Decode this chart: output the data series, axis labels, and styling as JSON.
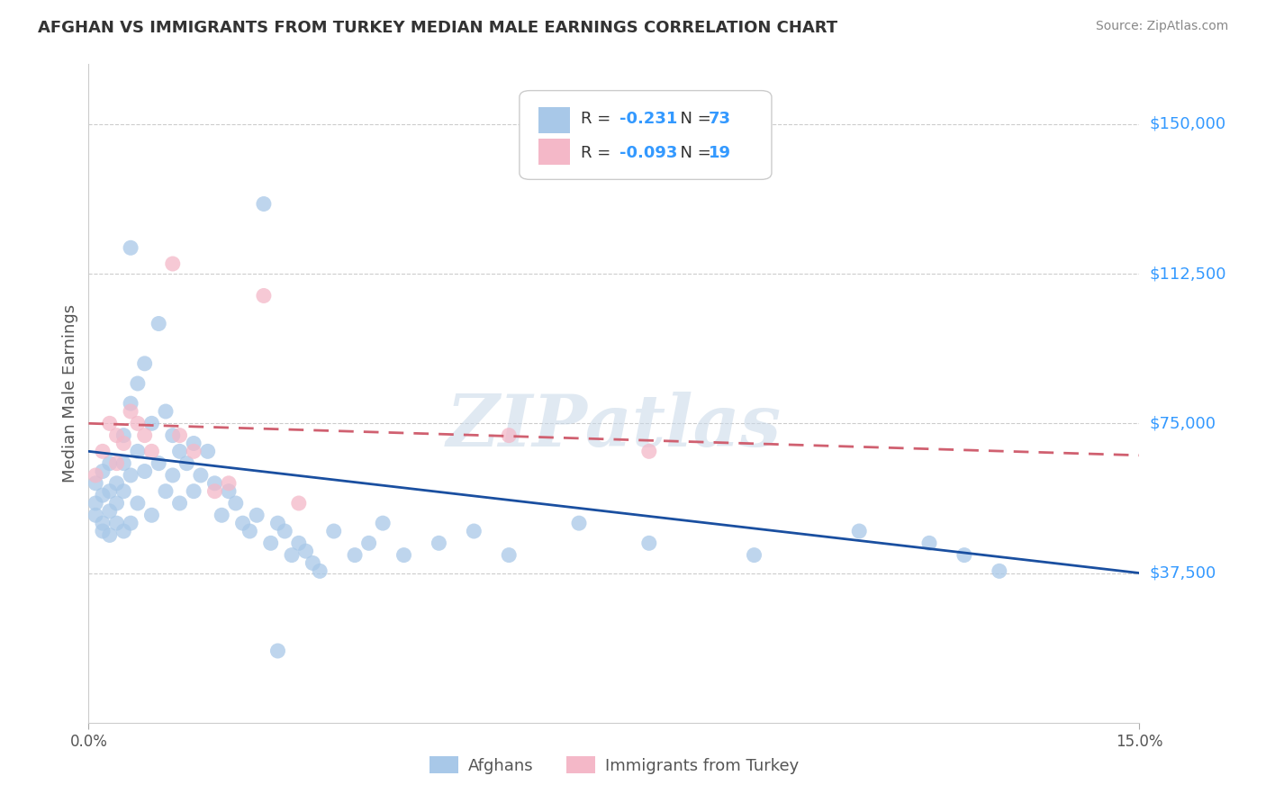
{
  "title": "AFGHAN VS IMMIGRANTS FROM TURKEY MEDIAN MALE EARNINGS CORRELATION CHART",
  "source": "Source: ZipAtlas.com",
  "ylabel": "Median Male Earnings",
  "xlim": [
    0.0,
    0.15
  ],
  "ylim": [
    0,
    165000
  ],
  "ytick_vals": [
    37500,
    75000,
    112500,
    150000
  ],
  "ytick_labels": [
    "$37,500",
    "$75,000",
    "$112,500",
    "$150,000"
  ],
  "background_color": "#ffffff",
  "watermark": "ZIPatlas",
  "blue_color": "#a8c8e8",
  "pink_color": "#f4b8c8",
  "line_blue": "#1a4fa0",
  "line_pink": "#d06070",
  "blue_line_y0": 68000,
  "blue_line_y1": 37500,
  "pink_line_y0": 75000,
  "pink_line_y1": 67000,
  "grid_color": "#cccccc",
  "tick_color": "#555555",
  "label_color": "#3399ff",
  "title_color": "#333333",
  "source_color": "#888888",
  "afghans_x": [
    0.001,
    0.001,
    0.001,
    0.002,
    0.002,
    0.002,
    0.002,
    0.003,
    0.003,
    0.003,
    0.003,
    0.004,
    0.004,
    0.004,
    0.005,
    0.005,
    0.005,
    0.005,
    0.006,
    0.006,
    0.006,
    0.006,
    0.007,
    0.007,
    0.007,
    0.008,
    0.008,
    0.009,
    0.009,
    0.01,
    0.01,
    0.011,
    0.011,
    0.012,
    0.012,
    0.013,
    0.013,
    0.014,
    0.015,
    0.015,
    0.016,
    0.017,
    0.018,
    0.019,
    0.02,
    0.021,
    0.022,
    0.023,
    0.024,
    0.025,
    0.026,
    0.027,
    0.028,
    0.029,
    0.03,
    0.031,
    0.032,
    0.033,
    0.035,
    0.038,
    0.04,
    0.042,
    0.045,
    0.05,
    0.055,
    0.06,
    0.07,
    0.08,
    0.095,
    0.11,
    0.12,
    0.125,
    0.13
  ],
  "afghans_y": [
    55000,
    60000,
    52000,
    63000,
    57000,
    50000,
    48000,
    65000,
    58000,
    53000,
    47000,
    60000,
    55000,
    50000,
    72000,
    65000,
    58000,
    48000,
    119000,
    80000,
    62000,
    50000,
    85000,
    68000,
    55000,
    90000,
    63000,
    75000,
    52000,
    100000,
    65000,
    78000,
    58000,
    72000,
    62000,
    68000,
    55000,
    65000,
    70000,
    58000,
    62000,
    68000,
    60000,
    52000,
    58000,
    55000,
    50000,
    48000,
    52000,
    130000,
    45000,
    50000,
    48000,
    42000,
    45000,
    43000,
    40000,
    38000,
    48000,
    42000,
    45000,
    50000,
    42000,
    45000,
    48000,
    42000,
    50000,
    45000,
    42000,
    48000,
    45000,
    42000,
    38000
  ],
  "turkey_x": [
    0.001,
    0.002,
    0.003,
    0.004,
    0.004,
    0.005,
    0.006,
    0.007,
    0.008,
    0.009,
    0.012,
    0.013,
    0.015,
    0.018,
    0.02,
    0.025,
    0.03,
    0.06,
    0.08
  ],
  "turkey_y": [
    62000,
    68000,
    75000,
    72000,
    65000,
    70000,
    78000,
    75000,
    72000,
    68000,
    115000,
    72000,
    68000,
    58000,
    60000,
    107000,
    55000,
    72000,
    68000
  ],
  "afghans_low_x": [
    0.027
  ],
  "afghans_low_y": [
    18000
  ]
}
